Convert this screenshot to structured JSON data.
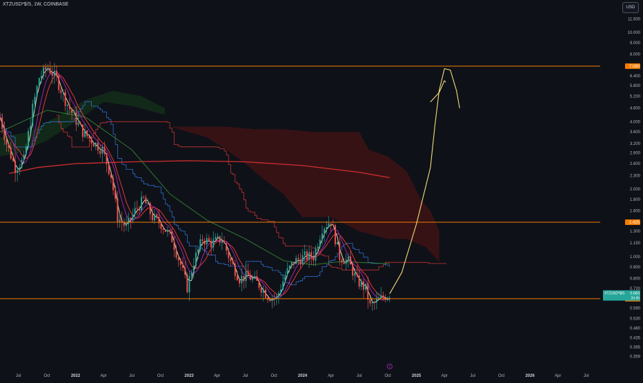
{
  "header": {
    "symbol_line": "XTZUSD*$/S, 1W, COINBASE",
    "currency_button": "USD"
  },
  "colors": {
    "background": "#0f1118",
    "up": "#26a69a",
    "down": "#ef5350",
    "hline": "#f57c00",
    "cloud_bear": "#5a1414",
    "cloud_bull": "#143a1a",
    "projection": "#f5e07a",
    "ma_yellow": "#f5f0c8",
    "ma_blue": "#2f80ed",
    "ma_purple": "#9c27b0",
    "ma_red": "#e53935",
    "ma_green": "#2e7d32",
    "ma_200": "#d32f2f"
  },
  "chart_data": {
    "type": "candlestick",
    "title": "XTZUSD*$/S, 1W, COINBASE",
    "y_scale": "log",
    "ylim": [
      0.345,
      13.2
    ],
    "y_ticks": [
      {
        "value": 13.0,
        "label": "13.000"
      },
      {
        "value": 11.5,
        "label": "11.500"
      },
      {
        "value": 10.0,
        "label": "10.000"
      },
      {
        "value": 9.0,
        "label": "9.000"
      },
      {
        "value": 8.0,
        "label": "8.000"
      },
      {
        "value": 6.4,
        "label": "6.400"
      },
      {
        "value": 5.8,
        "label": "5.800"
      },
      {
        "value": 5.2,
        "label": "5.200"
      },
      {
        "value": 4.6,
        "label": "4.600"
      },
      {
        "value": 4.0,
        "label": "4.000"
      },
      {
        "value": 3.6,
        "label": "3.600"
      },
      {
        "value": 3.2,
        "label": "3.200"
      },
      {
        "value": 2.9,
        "label": "2.900"
      },
      {
        "value": 2.6,
        "label": "2.600"
      },
      {
        "value": 2.3,
        "label": "2.300"
      },
      {
        "value": 2.0,
        "label": "2.000"
      },
      {
        "value": 1.8,
        "label": "1.800"
      },
      {
        "value": 1.6,
        "label": "1.600"
      },
      {
        "value": 1.3,
        "label": "1.300"
      },
      {
        "value": 1.15,
        "label": "1.150"
      },
      {
        "value": 1.0,
        "label": "1.000"
      },
      {
        "value": 0.9,
        "label": "0.900"
      },
      {
        "value": 0.8,
        "label": "0.800"
      },
      {
        "value": 0.72,
        "label": "0.720"
      },
      {
        "value": 0.59,
        "label": "0.590"
      },
      {
        "value": 0.53,
        "label": "0.530"
      },
      {
        "value": 0.48,
        "label": "0.480"
      },
      {
        "value": 0.435,
        "label": "0.435"
      },
      {
        "value": 0.395,
        "label": "0.395"
      },
      {
        "value": 0.359,
        "label": "0.359"
      }
    ],
    "x_ticks": [
      {
        "date": "2021-07",
        "label": "Jul"
      },
      {
        "date": "2021-10",
        "label": "Oct"
      },
      {
        "date": "2022-01",
        "label": "2022"
      },
      {
        "date": "2022-04",
        "label": "Apr"
      },
      {
        "date": "2022-07",
        "label": "Jul"
      },
      {
        "date": "2022-10",
        "label": "Oct"
      },
      {
        "date": "2023-01",
        "label": "2023"
      },
      {
        "date": "2023-04",
        "label": "Apr"
      },
      {
        "date": "2023-07",
        "label": "Jul"
      },
      {
        "date": "2023-10",
        "label": "Oct"
      },
      {
        "date": "2024-01",
        "label": "2024"
      },
      {
        "date": "2024-04",
        "label": "Apr"
      },
      {
        "date": "2024-07",
        "label": "Jul"
      },
      {
        "date": "2024-10",
        "label": "Oct"
      },
      {
        "date": "2025-01",
        "label": "2025"
      },
      {
        "date": "2025-04",
        "label": "Apr"
      },
      {
        "date": "2025-07",
        "label": "Jul"
      },
      {
        "date": "2025-10",
        "label": "Oct"
      },
      {
        "date": "2026-01",
        "label": "2026"
      },
      {
        "date": "2026-04",
        "label": "Apr"
      },
      {
        "date": "2026-07",
        "label": "Jul"
      }
    ],
    "horizontal_lines": [
      {
        "value": 7.08,
        "label": "7.080"
      },
      {
        "value": 1.425,
        "label": "1.425"
      },
      {
        "value": 0.649,
        "label": "0.649"
      }
    ],
    "price_labels": [
      {
        "symbol": "XTZUSD*$/S",
        "value": "0.683",
        "sub": "2d 4h"
      }
    ],
    "event_marker": "2",
    "anchors": [
      {
        "date": "2021-05-03",
        "value": 4.2
      },
      {
        "date": "2021-05-24",
        "value": 3.2
      },
      {
        "date": "2021-06-21",
        "value": 2.5
      },
      {
        "date": "2021-07-19",
        "value": 2.7
      },
      {
        "date": "2021-08-16",
        "value": 4.6
      },
      {
        "date": "2021-09-06",
        "value": 6.3
      },
      {
        "date": "2021-10-04",
        "value": 7.0
      },
      {
        "date": "2021-11-01",
        "value": 6.2
      },
      {
        "date": "2021-11-29",
        "value": 5.0
      },
      {
        "date": "2021-12-27",
        "value": 4.2
      },
      {
        "date": "2022-01-24",
        "value": 3.6
      },
      {
        "date": "2022-02-21",
        "value": 3.3
      },
      {
        "date": "2022-03-28",
        "value": 3.0
      },
      {
        "date": "2022-04-25",
        "value": 2.3
      },
      {
        "date": "2022-05-16",
        "value": 1.5
      },
      {
        "date": "2022-06-13",
        "value": 1.35
      },
      {
        "date": "2022-07-11",
        "value": 1.6
      },
      {
        "date": "2022-08-08",
        "value": 1.8
      },
      {
        "date": "2022-09-05",
        "value": 1.5
      },
      {
        "date": "2022-10-03",
        "value": 1.4
      },
      {
        "date": "2022-11-07",
        "value": 1.2
      },
      {
        "date": "2022-12-05",
        "value": 0.92
      },
      {
        "date": "2022-12-26",
        "value": 0.73
      },
      {
        "date": "2023-01-16",
        "value": 0.95
      },
      {
        "date": "2023-02-13",
        "value": 1.2
      },
      {
        "date": "2023-03-13",
        "value": 1.15
      },
      {
        "date": "2023-04-17",
        "value": 1.2
      },
      {
        "date": "2023-05-15",
        "value": 0.95
      },
      {
        "date": "2023-06-12",
        "value": 0.8
      },
      {
        "date": "2023-07-10",
        "value": 0.82
      },
      {
        "date": "2023-08-14",
        "value": 0.75
      },
      {
        "date": "2023-09-11",
        "value": 0.67
      },
      {
        "date": "2023-10-09",
        "value": 0.65
      },
      {
        "date": "2023-11-06",
        "value": 0.83
      },
      {
        "date": "2023-12-04",
        "value": 0.95
      },
      {
        "date": "2024-01-08",
        "value": 1.0
      },
      {
        "date": "2024-02-05",
        "value": 1.0
      },
      {
        "date": "2024-03-04",
        "value": 1.35
      },
      {
        "date": "2024-04-01",
        "value": 1.45
      },
      {
        "date": "2024-04-29",
        "value": 1.0
      },
      {
        "date": "2024-05-27",
        "value": 0.95
      },
      {
        "date": "2024-06-24",
        "value": 0.78
      },
      {
        "date": "2024-07-22",
        "value": 0.72
      },
      {
        "date": "2024-08-05",
        "value": 0.6
      },
      {
        "date": "2024-08-26",
        "value": 0.63
      },
      {
        "date": "2024-09-16",
        "value": 0.66
      },
      {
        "date": "2024-10-07",
        "value": 0.683
      }
    ],
    "cloud_bear_upper": [
      {
        "date": "2022-11-01",
        "value": 3.8
      },
      {
        "date": "2023-02-01",
        "value": 3.8
      },
      {
        "date": "2023-05-01",
        "value": 3.8
      },
      {
        "date": "2023-08-01",
        "value": 3.7
      },
      {
        "date": "2023-11-01",
        "value": 3.7
      },
      {
        "date": "2024-02-01",
        "value": 3.6
      },
      {
        "date": "2024-05-01",
        "value": 3.6
      },
      {
        "date": "2024-07-01",
        "value": 3.6
      },
      {
        "date": "2024-08-01",
        "value": 3.0
      },
      {
        "date": "2024-10-01",
        "value": 2.8
      },
      {
        "date": "2024-12-01",
        "value": 2.4
      },
      {
        "date": "2025-01-15",
        "value": 1.8
      },
      {
        "date": "2025-02-15",
        "value": 1.6
      },
      {
        "date": "2025-03-15",
        "value": 1.3
      }
    ],
    "cloud_bear_lower": [
      {
        "date": "2025-03-15",
        "value": 0.95
      },
      {
        "date": "2025-02-01",
        "value": 1.1
      },
      {
        "date": "2024-12-01",
        "value": 1.2
      },
      {
        "date": "2024-10-01",
        "value": 1.2
      },
      {
        "date": "2024-07-01",
        "value": 1.3
      },
      {
        "date": "2024-04-01",
        "value": 1.5
      },
      {
        "date": "2024-01-01",
        "value": 1.5
      },
      {
        "date": "2023-11-01",
        "value": 1.9
      },
      {
        "date": "2023-09-01",
        "value": 2.2
      },
      {
        "date": "2023-07-01",
        "value": 2.6
      },
      {
        "date": "2023-05-01",
        "value": 3.0
      },
      {
        "date": "2023-03-01",
        "value": 3.4
      },
      {
        "date": "2022-12-01",
        "value": 3.7
      }
    ],
    "cloud_bull_upper": [
      {
        "date": "2021-05-03",
        "value": 3.4
      },
      {
        "date": "2021-08-01",
        "value": 3.6
      },
      {
        "date": "2021-11-01",
        "value": 4.2
      },
      {
        "date": "2022-02-01",
        "value": 5.0
      },
      {
        "date": "2022-05-01",
        "value": 5.5
      },
      {
        "date": "2022-08-01",
        "value": 5.2
      },
      {
        "date": "2022-10-15",
        "value": 4.6
      }
    ],
    "cloud_bull_lower": [
      {
        "date": "2022-10-15",
        "value": 4.3
      },
      {
        "date": "2022-07-01",
        "value": 4.7
      },
      {
        "date": "2022-04-01",
        "value": 4.9
      },
      {
        "date": "2022-01-01",
        "value": 4.0
      },
      {
        "date": "2021-10-01",
        "value": 3.3
      },
      {
        "date": "2021-07-01",
        "value": 2.9
      },
      {
        "date": "2021-05-03",
        "value": 2.8
      }
    ],
    "ma_200": [
      {
        "date": "2021-06-01",
        "value": 2.35
      },
      {
        "date": "2021-09-01",
        "value": 2.5
      },
      {
        "date": "2022-01-01",
        "value": 2.6
      },
      {
        "date": "2022-07-01",
        "value": 2.65
      },
      {
        "date": "2023-01-01",
        "value": 2.68
      },
      {
        "date": "2023-07-01",
        "value": 2.65
      },
      {
        "date": "2024-01-01",
        "value": 2.55
      },
      {
        "date": "2024-07-01",
        "value": 2.38
      },
      {
        "date": "2024-10-07",
        "value": 2.25
      }
    ],
    "ma_green": [
      {
        "date": "2021-05-03",
        "value": 3.6
      },
      {
        "date": "2021-10-01",
        "value": 4.5
      },
      {
        "date": "2022-02-01",
        "value": 4.2
      },
      {
        "date": "2022-07-01",
        "value": 3.0
      },
      {
        "date": "2022-11-01",
        "value": 1.9
      },
      {
        "date": "2023-03-01",
        "value": 1.45
      },
      {
        "date": "2023-07-01",
        "value": 1.2
      },
      {
        "date": "2023-11-01",
        "value": 0.96
      },
      {
        "date": "2024-02-01",
        "value": 0.92
      },
      {
        "date": "2024-05-01",
        "value": 0.95
      },
      {
        "date": "2024-10-07",
        "value": 0.93
      }
    ],
    "projection": [
      {
        "date": "2024-10-07",
        "value": 0.683
      },
      {
        "date": "2024-11-15",
        "value": 0.85
      },
      {
        "date": "2025-01-01",
        "value": 1.4
      },
      {
        "date": "2025-02-15",
        "value": 2.5
      },
      {
        "date": "2025-03-01",
        "value": 3.8
      },
      {
        "date": "2025-03-15",
        "value": 5.5
      },
      {
        "date": "2025-04-01",
        "value": 6.9
      },
      {
        "date": "2025-04-20",
        "value": 6.8
      },
      {
        "date": "2025-05-10",
        "value": 5.5
      },
      {
        "date": "2025-05-20",
        "value": 4.6
      }
    ],
    "projection_hook": [
      {
        "date": "2025-02-15",
        "value": 4.9
      },
      {
        "date": "2025-03-15",
        "value": 5.4
      },
      {
        "date": "2025-04-01",
        "value": 6.1
      },
      {
        "date": "2025-04-05",
        "value": 6.0
      }
    ]
  }
}
